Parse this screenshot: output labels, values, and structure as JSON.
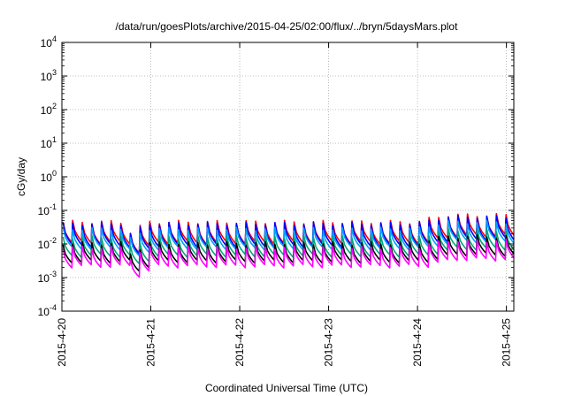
{
  "chart_data": {
    "type": "line",
    "title": "/data/run/goesPlots/archive/2015-04-25/02:00/flux/../bryn/5daysMars.plot",
    "xlabel": "Coordinated Universal Time (UTC)",
    "ylabel": "cGy/day",
    "x_scale": "time",
    "x_range": [
      "2015-04-20T00:00",
      "2015-04-25T02:00"
    ],
    "x_ticks": [
      "2015-4-20",
      "2015-4-21",
      "2015-4-22",
      "2015-4-23",
      "2015-4-24",
      "2015-4-25"
    ],
    "y_scale": "log",
    "ylim": [
      0.0001,
      10000
    ],
    "y_ticks": [
      {
        "base": "10",
        "exp": "-4"
      },
      {
        "base": "10",
        "exp": "-3"
      },
      {
        "base": "10",
        "exp": "-2"
      },
      {
        "base": "10",
        "exp": "-1"
      },
      {
        "base": "10",
        "exp": "0"
      },
      {
        "base": "10",
        "exp": "1"
      },
      {
        "base": "10",
        "exp": "2"
      },
      {
        "base": "10",
        "exp": "3"
      },
      {
        "base": "10",
        "exp": "4"
      }
    ],
    "grid": true,
    "pattern_period_hours": 2.6,
    "series": [
      {
        "color": "#ff0000",
        "peak": 0.045,
        "trough": 0.011
      },
      {
        "color": "#0000ff",
        "peak": 0.04,
        "trough": 0.009
      },
      {
        "color": "#00a0ff",
        "peak": 0.028,
        "trough": 0.0075
      },
      {
        "color": "#00a878",
        "peak": 0.016,
        "trough": 0.0045
      },
      {
        "color": "#000000",
        "peak": 0.0105,
        "trough": 0.003
      },
      {
        "color": "#ff00ff",
        "peak": 0.0078,
        "trough": 0.0022
      }
    ]
  }
}
